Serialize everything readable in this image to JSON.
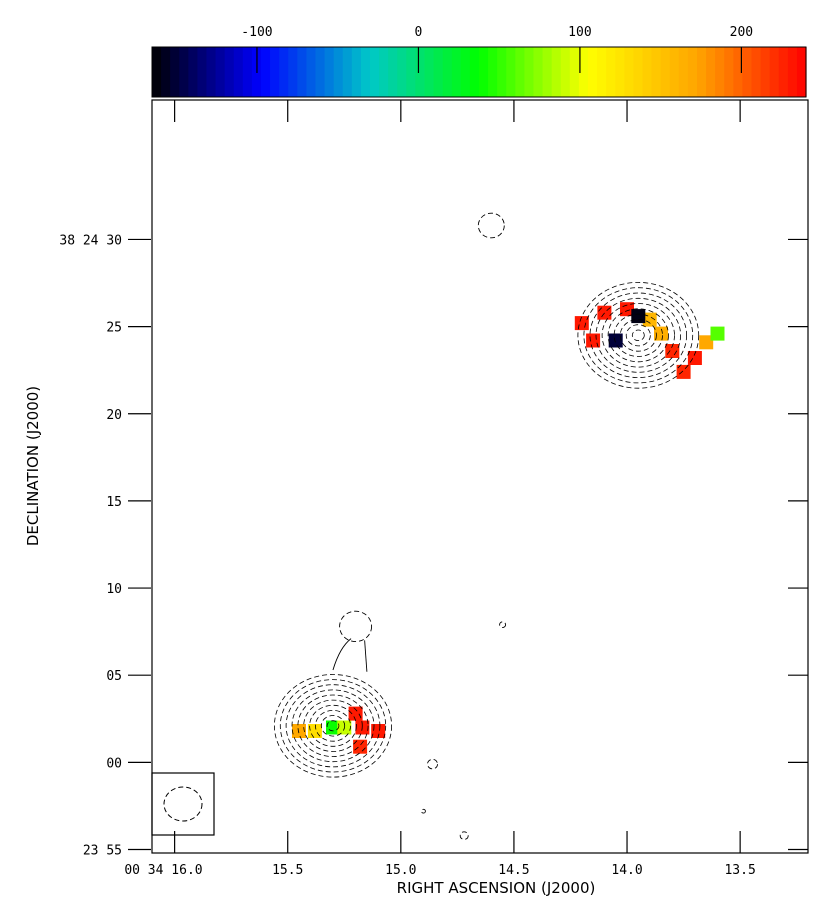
{
  "chart_data": {
    "type": "heatmap",
    "title": "",
    "xlabel": "RIGHT ASCENSION (J2000)",
    "ylabel": "DECLINATION (J2000)",
    "colorbar": {
      "range": [
        -165,
        240
      ],
      "ticks": [
        {
          "value": -100,
          "label": "-100"
        },
        {
          "value": 0,
          "label": "0"
        },
        {
          "value": 100,
          "label": "100"
        },
        {
          "value": 200,
          "label": "200"
        }
      ],
      "colormap": [
        "#000000",
        "#0000ff",
        "#00c8c8",
        "#00ff00",
        "#ffff00",
        "#ffa500",
        "#ff0000"
      ]
    },
    "x_axis": {
      "unit": "seconds of RA (00 34 mm)",
      "range": [
        16.1,
        13.2
      ],
      "ticks": [
        {
          "value": 16.0,
          "label": "00 34 16.0"
        },
        {
          "value": 15.5,
          "label": "15.5"
        },
        {
          "value": 15.0,
          "label": "15.0"
        },
        {
          "value": 14.5,
          "label": "14.5"
        },
        {
          "value": 14.0,
          "label": "14.0"
        },
        {
          "value": 13.5,
          "label": "13.5"
        }
      ]
    },
    "y_axis": {
      "unit": "arcsec offset from 38 23 00",
      "range": [
        -5.2,
        38.0
      ],
      "ticks": [
        {
          "value": -5,
          "label": "23 55"
        },
        {
          "value": 0,
          "label": "00"
        },
        {
          "value": 5,
          "label": "05"
        },
        {
          "value": 10,
          "label": "10"
        },
        {
          "value": 15,
          "label": "15"
        },
        {
          "value": 20,
          "label": "20"
        },
        {
          "value": 25,
          "label": "25"
        },
        {
          "value": 30,
          "label": "38 24 30"
        }
      ]
    },
    "sources": [
      {
        "name": "north-west component",
        "ra_s": 13.95,
        "dec_off": 24.5,
        "contour_radius_arcsec": 3.3
      },
      {
        "name": "south-east component",
        "ra_s": 15.3,
        "dec_off": 2.1,
        "contour_radius_arcsec": 3.2
      }
    ],
    "pixel_blocks": [
      {
        "ra_s": 14.2,
        "dec_off": 25.2,
        "value": 230
      },
      {
        "ra_s": 14.1,
        "dec_off": 25.8,
        "value": 230
      },
      {
        "ra_s": 14.0,
        "dec_off": 26.0,
        "value": 230
      },
      {
        "ra_s": 13.9,
        "dec_off": 25.4,
        "value": 160
      },
      {
        "ra_s": 13.85,
        "dec_off": 24.6,
        "value": 165
      },
      {
        "ra_s": 14.15,
        "dec_off": 24.2,
        "value": 230
      },
      {
        "ra_s": 13.8,
        "dec_off": 23.6,
        "value": 225
      },
      {
        "ra_s": 13.7,
        "dec_off": 23.2,
        "value": 230
      },
      {
        "ra_s": 13.75,
        "dec_off": 22.4,
        "value": 225
      },
      {
        "ra_s": 13.65,
        "dec_off": 24.1,
        "value": 170
      },
      {
        "ra_s": 13.6,
        "dec_off": 24.6,
        "value": 60
      },
      {
        "ra_s": 13.95,
        "dec_off": 25.6,
        "value": -160
      },
      {
        "ra_s": 14.05,
        "dec_off": 24.2,
        "value": -150
      },
      {
        "ra_s": 15.45,
        "dec_off": 1.8,
        "value": 170
      },
      {
        "ra_s": 15.38,
        "dec_off": 1.8,
        "value": 130
      },
      {
        "ra_s": 15.3,
        "dec_off": 2.0,
        "value": 40
      },
      {
        "ra_s": 15.25,
        "dec_off": 2.0,
        "value": 90
      },
      {
        "ra_s": 15.17,
        "dec_off": 2.0,
        "value": 230
      },
      {
        "ra_s": 15.1,
        "dec_off": 1.8,
        "value": 230
      },
      {
        "ra_s": 15.2,
        "dec_off": 2.8,
        "value": 230
      },
      {
        "ra_s": 15.18,
        "dec_off": 0.9,
        "value": 225
      }
    ]
  }
}
